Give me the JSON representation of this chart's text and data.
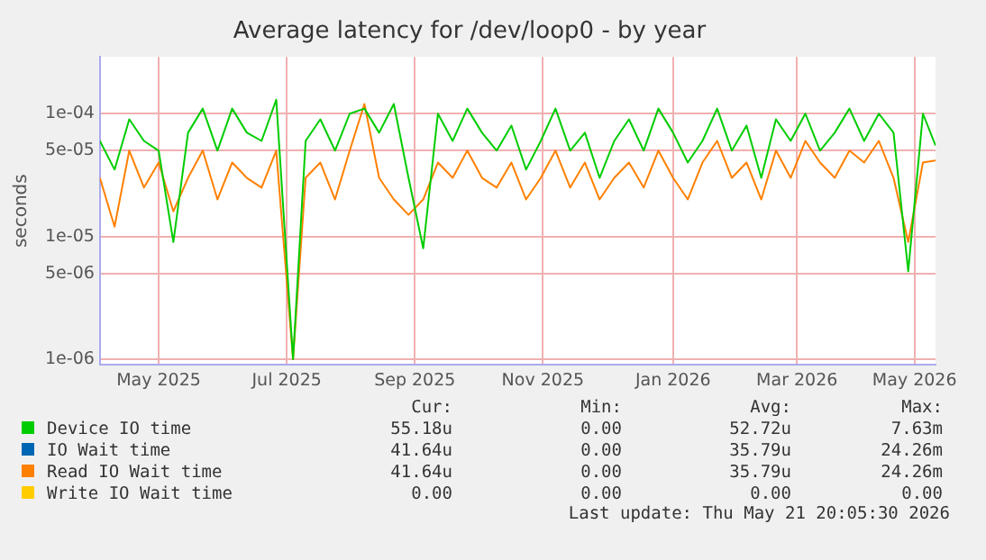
{
  "chart_data": {
    "type": "line",
    "title": "Average latency for /dev/loop0 - by year",
    "ylabel": "seconds",
    "x": [
      "2025-04-18",
      "2025-04-25",
      "2025-05-02",
      "2025-05-09",
      "2025-05-16",
      "2025-05-23",
      "2025-05-30",
      "2025-06-06",
      "2025-06-13",
      "2025-06-20",
      "2025-06-27",
      "2025-07-04",
      "2025-07-11",
      "2025-07-19",
      "2025-07-25",
      "2025-08-01",
      "2025-08-08",
      "2025-08-15",
      "2025-08-22",
      "2025-08-29",
      "2025-09-05",
      "2025-09-12",
      "2025-09-19",
      "2025-09-26",
      "2025-10-03",
      "2025-10-10",
      "2025-10-17",
      "2025-10-24",
      "2025-10-31",
      "2025-11-07",
      "2025-11-14",
      "2025-11-21",
      "2025-11-28",
      "2025-12-05",
      "2025-12-12",
      "2025-12-19",
      "2025-12-26",
      "2026-01-02",
      "2026-01-09",
      "2026-01-16",
      "2026-01-23",
      "2026-01-30",
      "2026-02-06",
      "2026-02-13",
      "2026-02-20",
      "2026-02-27",
      "2026-03-06",
      "2026-03-13",
      "2026-03-20",
      "2026-03-27",
      "2026-04-03",
      "2026-04-10",
      "2026-04-17",
      "2026-04-24",
      "2026-05-01",
      "2026-05-08",
      "2026-05-15",
      "2026-05-21"
    ],
    "series": [
      {
        "name": "Device IO time",
        "color": "#00cc00",
        "values": [
          6e-05,
          3.5e-05,
          9e-05,
          6e-05,
          5e-05,
          9e-06,
          7e-05,
          0.00011,
          5e-05,
          0.00011,
          7e-05,
          6e-05,
          0.00013,
          1e-06,
          6e-05,
          9e-05,
          5e-05,
          0.0001,
          0.00011,
          7e-05,
          0.00012,
          3e-05,
          8e-06,
          0.0001,
          6e-05,
          0.00011,
          7e-05,
          5e-05,
          8e-05,
          3.5e-05,
          6e-05,
          0.00011,
          5e-05,
          7e-05,
          3e-05,
          6e-05,
          9e-05,
          5e-05,
          0.00011,
          7e-05,
          4e-05,
          6e-05,
          0.00011,
          5e-05,
          8e-05,
          3e-05,
          9e-05,
          6e-05,
          0.0001,
          5e-05,
          7e-05,
          0.00011,
          6e-05,
          0.0001,
          7e-05,
          5.2e-06,
          0.0001,
          5.5e-05
        ]
      },
      {
        "name": "IO Wait time",
        "color": "#0066b3",
        "values": [
          null,
          null,
          null,
          null,
          null,
          null,
          null,
          null,
          null,
          null,
          null,
          null,
          null,
          null,
          null,
          null,
          null,
          null,
          null,
          null,
          null,
          null,
          null,
          null,
          null,
          null,
          null,
          null,
          null,
          null,
          null,
          null,
          null,
          null,
          null,
          null,
          null,
          null,
          null,
          null,
          null,
          null,
          null,
          null,
          null,
          null,
          null,
          null,
          null,
          null,
          null,
          null,
          null,
          null,
          null,
          null,
          null,
          null
        ]
      },
      {
        "name": "Read IO Wait time",
        "color": "#ff8000",
        "values": [
          3e-05,
          1.2e-05,
          5e-05,
          2.5e-05,
          4e-05,
          1.6e-05,
          3e-05,
          5e-05,
          2e-05,
          4e-05,
          3e-05,
          2.5e-05,
          5e-05,
          1e-06,
          3e-05,
          4e-05,
          2e-05,
          5e-05,
          0.00012,
          3e-05,
          2e-05,
          1.5e-05,
          2e-05,
          4e-05,
          3e-05,
          5e-05,
          3e-05,
          2.5e-05,
          4e-05,
          2e-05,
          3e-05,
          5e-05,
          2.5e-05,
          4e-05,
          2e-05,
          3e-05,
          4e-05,
          2.5e-05,
          5e-05,
          3e-05,
          2e-05,
          4e-05,
          6e-05,
          3e-05,
          4e-05,
          2e-05,
          5e-05,
          3e-05,
          6e-05,
          4e-05,
          3e-05,
          5e-05,
          4e-05,
          6e-05,
          3e-05,
          9e-06,
          4e-05,
          4.16e-05
        ]
      },
      {
        "name": "Write IO Wait time",
        "color": "#ffcc00",
        "values": [
          null,
          null,
          null,
          null,
          null,
          null,
          null,
          null,
          null,
          null,
          null,
          null,
          null,
          null,
          null,
          null,
          null,
          null,
          null,
          null,
          null,
          null,
          null,
          null,
          null,
          null,
          null,
          null,
          null,
          null,
          null,
          null,
          null,
          null,
          null,
          null,
          null,
          null,
          null,
          null,
          null,
          null,
          null,
          null,
          null,
          null,
          null,
          null,
          null,
          null,
          null,
          null,
          null,
          null,
          null,
          null,
          null,
          null
        ]
      }
    ],
    "xlim": [
      "2025-04-18",
      "2026-05-21"
    ],
    "xticks": [
      {
        "value": "2025-05-16",
        "label": "May 2025"
      },
      {
        "value": "2025-07-16",
        "label": "Jul 2025"
      },
      {
        "value": "2025-09-15",
        "label": "Sep 2025"
      },
      {
        "value": "2025-11-15",
        "label": "Nov 2025"
      },
      {
        "value": "2026-01-16",
        "label": "Jan 2026"
      },
      {
        "value": "2026-03-16",
        "label": "Mar 2026"
      },
      {
        "value": "2026-05-11",
        "label": "May 2026"
      }
    ],
    "ylim": [
      9e-07,
      0.00029
    ],
    "yticks": [
      {
        "value": 1e-06,
        "label": "1e-06"
      },
      {
        "value": 5e-06,
        "label": "5e-06"
      },
      {
        "value": 1e-05,
        "label": "1e-05"
      },
      {
        "value": 5e-05,
        "label": "5e-05"
      },
      {
        "value": 0.0001,
        "label": "1e-04"
      }
    ],
    "log": "y",
    "grid": true,
    "legend": "bottom",
    "marker": "none",
    "line_style": "solid",
    "annotations": [
      "Cur:",
      "Min:",
      "Avg:",
      "Max:",
      "55.18u",
      "0.00",
      "52.72u",
      "7.63m",
      "41.64u",
      "0.00",
      "35.79u",
      "24.26m",
      "41.64u",
      "0.00",
      "35.79u",
      "24.26m",
      "0.00",
      "0.00",
      "0.00",
      "0.00",
      "Last update: Thu May 21 20:05:30 2026"
    ]
  }
}
